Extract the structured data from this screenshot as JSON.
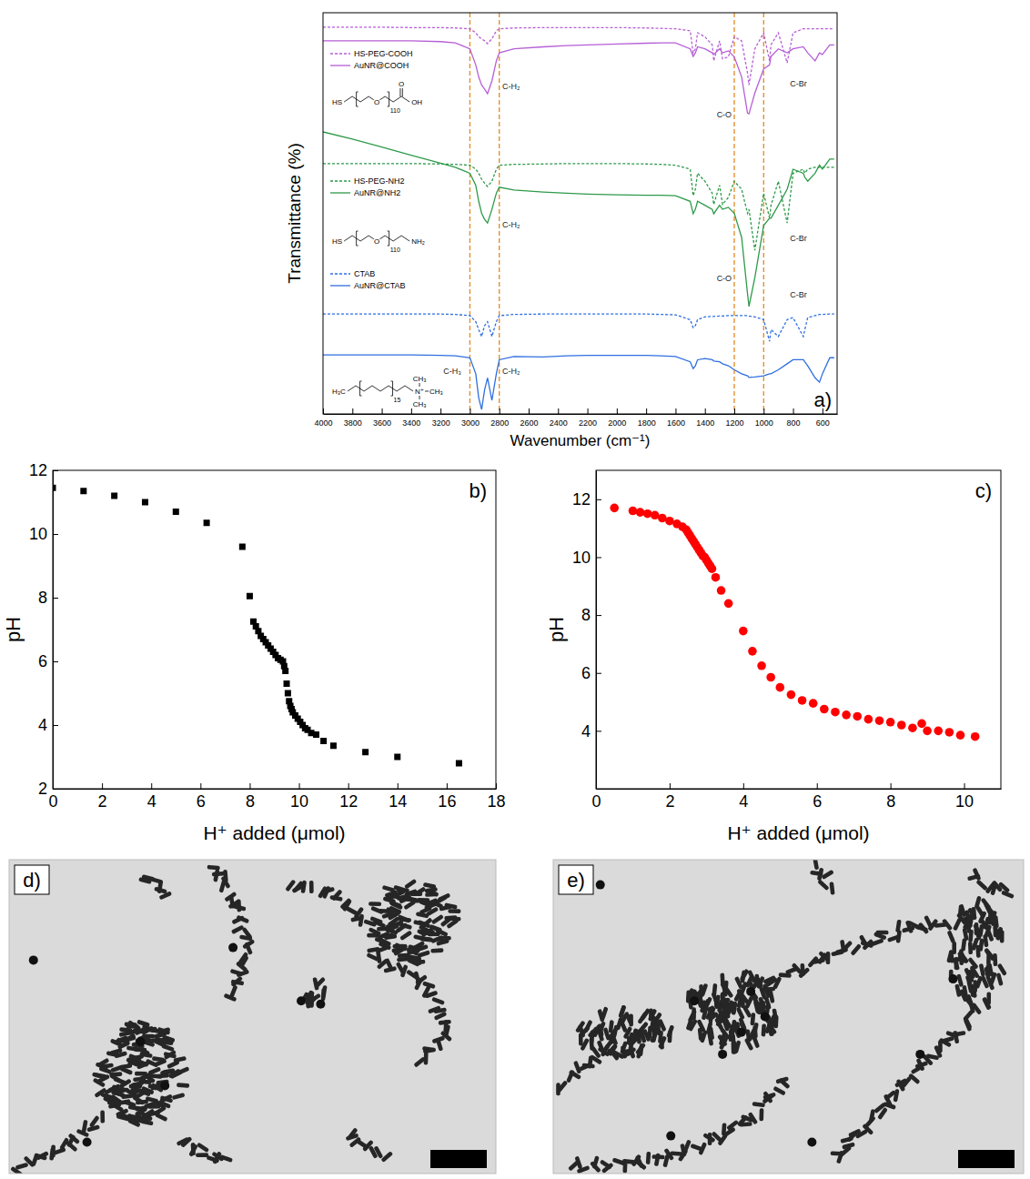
{
  "chart_data": [
    {
      "type": "line",
      "panel_label": "a)",
      "x_label": "Wavenumber (cm⁻¹)",
      "y_label": "Transmittance (%)",
      "xlim": [
        4000,
        500
      ],
      "xticks": [
        4000,
        3800,
        3600,
        3400,
        3200,
        3000,
        2800,
        2600,
        2400,
        2200,
        2000,
        1800,
        1600,
        1400,
        1200,
        1000,
        800,
        600
      ],
      "ylim": [
        0,
        100
      ],
      "tick_labels": "x",
      "legend": "left",
      "x": [
        4000,
        3800,
        3600,
        3400,
        3200,
        3100,
        3000,
        2960,
        2940,
        2920,
        2900,
        2880,
        2850,
        2820,
        2800,
        2700,
        2500,
        2340,
        2200,
        2000,
        1800,
        1700,
        1600,
        1500,
        1480,
        1465,
        1450,
        1400,
        1350,
        1340,
        1300,
        1280,
        1240,
        1200,
        1150,
        1110,
        1100,
        1060,
        1000,
        960,
        950,
        900,
        840,
        800,
        730,
        720,
        700,
        650,
        620,
        600,
        550,
        520
      ],
      "series": [
        {
          "name": "HS-PEG-COOH",
          "color": "#b65fd6",
          "line_style": "dashed",
          "values": [
            96.4,
            96.4,
            96.4,
            96.3,
            96.3,
            96.2,
            96,
            95,
            94,
            93.5,
            93,
            92.3,
            93.5,
            95.5,
            96,
            96.2,
            96.3,
            96.3,
            96.3,
            96.3,
            96.2,
            96.1,
            96,
            95.5,
            90,
            91,
            95,
            94,
            92,
            88,
            93,
            88.5,
            89,
            94,
            93,
            85,
            82,
            91,
            95,
            88,
            92,
            95,
            87.5,
            95,
            96,
            96,
            96,
            96,
            96,
            96,
            96,
            96
          ]
        },
        {
          "name": "AuNR@COOH",
          "color": "#b65fd6",
          "line_style": "solid",
          "values": [
            93,
            93,
            93,
            93,
            92.8,
            92.5,
            91,
            87,
            84,
            82,
            81,
            79.8,
            83,
            88,
            90,
            91,
            91.5,
            91.8,
            92,
            92.2,
            92.4,
            92.5,
            92.5,
            91,
            89.1,
            90,
            91.5,
            91,
            90,
            89.6,
            91,
            90,
            90.5,
            89,
            84,
            75,
            74.8,
            80,
            86,
            87,
            89.1,
            91,
            90,
            91,
            91.5,
            91,
            90,
            88,
            90,
            89.6,
            92,
            92
          ]
        },
        {
          "name": "HS-PEG-NH2",
          "color": "#2e9a4a",
          "line_style": "dashed",
          "values": [
            62.4,
            62.4,
            62.4,
            62.4,
            62.3,
            62.2,
            62,
            61,
            60,
            58.5,
            57.5,
            56.7,
            58,
            61,
            62,
            62.2,
            62.3,
            62.4,
            62.4,
            62.4,
            62.3,
            62.2,
            62,
            61,
            54.4,
            56,
            60,
            58,
            55,
            52.2,
            57,
            52.2,
            54,
            58,
            56,
            50,
            51,
            40.8,
            55,
            48.8,
            52,
            58,
            47.6,
            60,
            61,
            60,
            61,
            61.5,
            61.5,
            61.5,
            61.5,
            61.5
          ]
        },
        {
          "name": "AuNR@NH2",
          "color": "#2e9a4a",
          "line_style": "solid",
          "values": [
            70.3,
            68.5,
            66.5,
            64.5,
            62.5,
            61.5,
            60,
            57,
            53,
            50,
            48.5,
            47.6,
            51,
            55,
            56.5,
            55.8,
            55.3,
            55,
            54.8,
            54.6,
            54.5,
            54.5,
            54.4,
            53,
            49.9,
            51,
            53,
            52,
            51,
            49.9,
            52,
            51,
            51.5,
            50,
            44,
            30,
            26.8,
            34,
            47,
            48.8,
            48.8,
            52,
            56,
            61,
            60,
            59,
            58,
            60,
            62,
            61,
            63.5,
            63.5
          ]
        },
        {
          "name": "CTAB",
          "color": "#2f6fe0",
          "line_style": "dashed",
          "values": [
            24.9,
            24.9,
            24.9,
            24.9,
            24.9,
            24.8,
            24.5,
            23,
            21,
            19.3,
            22,
            23,
            19.3,
            23,
            24.5,
            24.8,
            24.9,
            24.9,
            24.9,
            24.9,
            24.9,
            24.8,
            24.7,
            23.5,
            21.5,
            22,
            23.5,
            24.2,
            24.3,
            24.3,
            24.4,
            24.4,
            24.5,
            24.5,
            24.5,
            24.5,
            24.4,
            24.2,
            23.5,
            18.1,
            21,
            19.3,
            23.5,
            24,
            19.3,
            21,
            24,
            24.5,
            24.8,
            24.8,
            24.9,
            24.9
          ]
        },
        {
          "name": "AuNR@CTAB",
          "color": "#2f6fe0",
          "line_style": "solid",
          "values": [
            14.7,
            14.7,
            14.7,
            14.7,
            14.6,
            14.5,
            14,
            10,
            4,
            1.1,
            6,
            9,
            3.4,
            10,
            13.5,
            14.3,
            14.2,
            14.5,
            14.6,
            14.6,
            14.6,
            14.5,
            14.3,
            13,
            11.3,
            12,
            13.5,
            13.8,
            13.5,
            13.2,
            13,
            12.5,
            12,
            11,
            10,
            9.5,
            9.1,
            9.2,
            9.5,
            10,
            10,
            11,
            12.5,
            13.5,
            13.5,
            13,
            12,
            9,
            7.9,
            10,
            14,
            14
          ]
        }
      ],
      "reference_lines": [
        3000,
        2800,
        1200,
        1000
      ],
      "annotations": [
        {
          "text": "C-H₂",
          "x": 2780,
          "y": 81
        },
        {
          "text": "C-O",
          "x": 1320,
          "y": 74
        },
        {
          "text": "C-Br",
          "x": 820,
          "y": 81.6
        },
        {
          "text": "C-H₂",
          "x": 2780,
          "y": 46.5
        },
        {
          "text": "C-O",
          "x": 1320,
          "y": 33
        },
        {
          "text": "C-Br",
          "x": 820,
          "y": 43
        },
        {
          "text": "C-H₃",
          "x": 3180,
          "y": 10
        },
        {
          "text": "C-H₂",
          "x": 2780,
          "y": 10
        },
        {
          "text": "C-Br",
          "x": 820,
          "y": 29
        }
      ],
      "structures": [
        {
          "left": "HS",
          "unit": "O",
          "n": "110",
          "carbonyl": "O",
          "end": "OH"
        },
        {
          "left": "HS",
          "unit": "O",
          "n": "110",
          "end": "NH₂"
        },
        {
          "left": "H₃C",
          "n": "15",
          "end": "N⁺",
          "methyls": [
            "CH₃",
            "CH₃",
            "CH₃"
          ]
        }
      ]
    },
    {
      "type": "scatter",
      "panel_label": "b)",
      "x_label": "H⁺ added (μmol)",
      "y_label": "pH",
      "xlim": [
        0,
        18
      ],
      "xticks": [
        0,
        2,
        4,
        6,
        8,
        10,
        12,
        14,
        16,
        18
      ],
      "ylim": [
        2,
        12
      ],
      "yticks": [
        2,
        4,
        6,
        8,
        10,
        12
      ],
      "color": "#000000",
      "marker": "square",
      "x": [
        0,
        1.25,
        2.5,
        3.75,
        5,
        6.25,
        7.7,
        8,
        8.15,
        8.25,
        8.35,
        8.45,
        8.55,
        8.65,
        8.75,
        8.85,
        8.95,
        9.05,
        9.15,
        9.25,
        9.35,
        9.4,
        9.45,
        9.5,
        9.55,
        9.6,
        9.65,
        9.7,
        9.75,
        9.85,
        9.95,
        10.05,
        10.15,
        10.25,
        10.35,
        10.5,
        10.7,
        11,
        11.4,
        12.7,
        14,
        16.5
      ],
      "values": [
        11.45,
        11.35,
        11.2,
        11,
        10.7,
        10.35,
        9.6,
        8.05,
        7.25,
        7.1,
        6.95,
        6.8,
        6.7,
        6.6,
        6.5,
        6.4,
        6.3,
        6.2,
        6.1,
        6.05,
        6,
        5.85,
        5.7,
        5.3,
        5,
        4.75,
        4.6,
        4.5,
        4.4,
        4.3,
        4.2,
        4.1,
        4,
        3.9,
        3.85,
        3.75,
        3.7,
        3.5,
        3.35,
        3.15,
        3,
        2.8
      ]
    },
    {
      "type": "scatter",
      "panel_label": "c)",
      "x_label": "H⁺ added (μmol)",
      "y_label": "pH",
      "xlim": [
        0,
        11
      ],
      "xticks": [
        0,
        2,
        4,
        6,
        8,
        10
      ],
      "ylim": [
        2,
        13
      ],
      "yticks": [
        4,
        6,
        8,
        10,
        12
      ],
      "color": "#ff0000",
      "marker": "circle",
      "x": [
        0.5,
        1,
        1.2,
        1.4,
        1.6,
        1.8,
        2,
        2.2,
        2.35,
        2.45,
        2.5,
        2.55,
        2.6,
        2.65,
        2.7,
        2.75,
        2.8,
        2.85,
        2.9,
        2.95,
        3,
        3.05,
        3.1,
        3.15,
        3.25,
        3.4,
        3.6,
        4,
        4.25,
        4.5,
        4.75,
        5,
        5.3,
        5.6,
        5.9,
        6.2,
        6.5,
        6.8,
        7.1,
        7.4,
        7.7,
        8,
        8.3,
        8.6,
        8.85,
        9,
        9.3,
        9.6,
        9.9,
        10.3
      ],
      "values": [
        11.7,
        11.6,
        11.55,
        11.5,
        11.45,
        11.35,
        11.25,
        11.15,
        11.05,
        10.95,
        10.85,
        10.75,
        10.65,
        10.55,
        10.45,
        10.35,
        10.25,
        10.15,
        10.05,
        10,
        9.9,
        9.8,
        9.7,
        9.6,
        9.3,
        8.85,
        8.4,
        7.45,
        6.75,
        6.25,
        5.85,
        5.5,
        5.25,
        5.05,
        4.95,
        4.75,
        4.65,
        4.55,
        4.5,
        4.4,
        4.35,
        4.3,
        4.2,
        4.1,
        4.25,
        4,
        4,
        3.95,
        3.85,
        3.8
      ]
    }
  ],
  "images": [
    {
      "panel_label": "d)"
    },
    {
      "panel_label": "e)"
    }
  ]
}
